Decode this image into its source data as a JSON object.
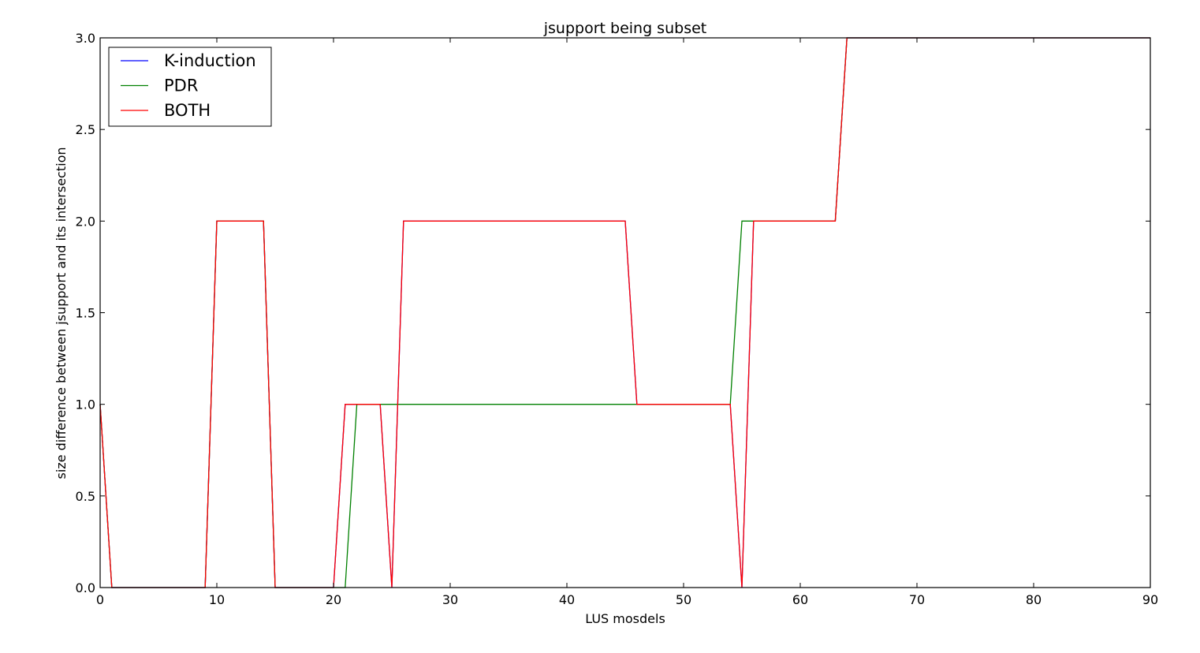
{
  "chart_data": {
    "type": "line",
    "title": "jsupport being subset",
    "xlabel": "LUS mosdels",
    "ylabel": "size difference between jsupport and its intersection",
    "xlim": [
      0,
      90
    ],
    "ylim": [
      0.0,
      3.0
    ],
    "xticks": [
      0,
      10,
      20,
      30,
      40,
      50,
      60,
      70,
      80,
      90
    ],
    "xtick_labels": [
      "0",
      "10",
      "20",
      "30",
      "40",
      "50",
      "60",
      "70",
      "80",
      "90"
    ],
    "yticks": [
      0.0,
      0.5,
      1.0,
      1.5,
      2.0,
      2.5,
      3.0
    ],
    "ytick_labels": [
      "0.0",
      "0.5",
      "1.0",
      "1.5",
      "2.0",
      "2.5",
      "3.0"
    ],
    "grid": false,
    "legend_position": "top-left",
    "series": [
      {
        "name": "K-induction",
        "color": "#0000ff",
        "points": [
          [
            0,
            1
          ],
          [
            1,
            0
          ],
          [
            9,
            0
          ],
          [
            10,
            2
          ],
          [
            14,
            2
          ],
          [
            15,
            0
          ],
          [
            20,
            0
          ],
          [
            21,
            1
          ],
          [
            24,
            1
          ],
          [
            25,
            0
          ],
          [
            26,
            2
          ],
          [
            45,
            2
          ],
          [
            46,
            1
          ],
          [
            54,
            1
          ],
          [
            55,
            0
          ],
          [
            56,
            2
          ],
          [
            63,
            2
          ],
          [
            64,
            3
          ],
          [
            90,
            3
          ]
        ]
      },
      {
        "name": "PDR",
        "color": "#008000",
        "points": [
          [
            0,
            1
          ],
          [
            1,
            0
          ],
          [
            9,
            0
          ],
          [
            10,
            2
          ],
          [
            14,
            2
          ],
          [
            15,
            0
          ],
          [
            21,
            0
          ],
          [
            22,
            1
          ],
          [
            54,
            1
          ],
          [
            55,
            2
          ],
          [
            63,
            2
          ],
          [
            64,
            3
          ],
          [
            90,
            3
          ]
        ]
      },
      {
        "name": "BOTH",
        "color": "#ff0000",
        "points": [
          [
            0,
            1
          ],
          [
            1,
            0
          ],
          [
            9,
            0
          ],
          [
            10,
            2
          ],
          [
            14,
            2
          ],
          [
            15,
            0
          ],
          [
            20,
            0
          ],
          [
            21,
            1
          ],
          [
            24,
            1
          ],
          [
            25,
            0
          ],
          [
            26,
            2
          ],
          [
            45,
            2
          ],
          [
            46,
            1
          ],
          [
            54,
            1
          ],
          [
            55,
            0
          ],
          [
            56,
            2
          ],
          [
            63,
            2
          ],
          [
            64,
            3
          ],
          [
            90,
            3
          ]
        ]
      }
    ]
  }
}
